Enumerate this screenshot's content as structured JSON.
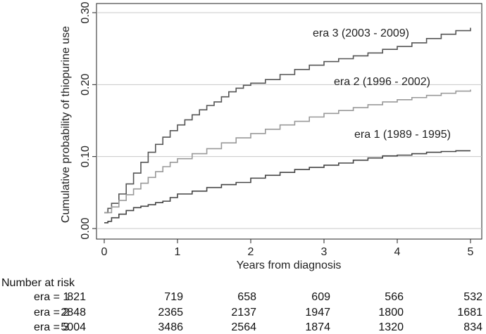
{
  "chart_data": {
    "type": "line",
    "xlabel": "Years from diagnosis",
    "ylabel": "Cumulative probability of thiopurine use",
    "xlim": [
      0,
      5
    ],
    "ylim": [
      0,
      0.3
    ],
    "x_ticks": [
      "0",
      "1",
      "2",
      "3",
      "4",
      "5"
    ],
    "y_ticks": [
      "0.00",
      "0.10",
      "0.20",
      "0.30"
    ],
    "grid": true,
    "series": [
      {
        "name": "era 3 (2003 - 2009)",
        "color": "#555555",
        "x": [
          0,
          0.05,
          0.1,
          0.2,
          0.3,
          0.4,
          0.5,
          0.6,
          0.7,
          0.8,
          0.9,
          1.0,
          1.1,
          1.2,
          1.3,
          1.4,
          1.5,
          1.6,
          1.7,
          1.8,
          1.9,
          2.0,
          2.2,
          2.4,
          2.6,
          2.8,
          3.0,
          3.2,
          3.4,
          3.6,
          3.8,
          4.0,
          4.2,
          4.4,
          4.6,
          4.8,
          5.0
        ],
        "values": [
          0.022,
          0.028,
          0.035,
          0.048,
          0.062,
          0.077,
          0.092,
          0.106,
          0.117,
          0.127,
          0.136,
          0.144,
          0.151,
          0.158,
          0.165,
          0.171,
          0.176,
          0.183,
          0.19,
          0.195,
          0.199,
          0.202,
          0.207,
          0.214,
          0.221,
          0.227,
          0.232,
          0.236,
          0.24,
          0.244,
          0.249,
          0.253,
          0.258,
          0.264,
          0.27,
          0.275,
          0.279
        ]
      },
      {
        "name": "era 2 (1996 - 2002)",
        "color": "#999999",
        "x": [
          0,
          0.1,
          0.2,
          0.3,
          0.4,
          0.5,
          0.6,
          0.7,
          0.8,
          0.9,
          1.0,
          1.2,
          1.4,
          1.6,
          1.8,
          2.0,
          2.2,
          2.4,
          2.6,
          2.8,
          3.0,
          3.2,
          3.4,
          3.6,
          3.8,
          4.0,
          4.2,
          4.4,
          4.6,
          4.8,
          5.0
        ],
        "values": [
          0.022,
          0.03,
          0.039,
          0.047,
          0.055,
          0.063,
          0.071,
          0.079,
          0.086,
          0.092,
          0.097,
          0.104,
          0.111,
          0.119,
          0.126,
          0.132,
          0.138,
          0.144,
          0.149,
          0.155,
          0.16,
          0.164,
          0.168,
          0.172,
          0.176,
          0.179,
          0.182,
          0.185,
          0.188,
          0.191,
          0.193
        ]
      },
      {
        "name": "era 1 (1989 - 1995)",
        "color": "#444444",
        "x": [
          0,
          0.05,
          0.1,
          0.2,
          0.3,
          0.4,
          0.5,
          0.6,
          0.7,
          0.8,
          0.9,
          1.0,
          1.2,
          1.4,
          1.6,
          1.8,
          2.0,
          2.2,
          2.4,
          2.6,
          2.8,
          3.0,
          3.2,
          3.4,
          3.6,
          3.8,
          4.0,
          4.2,
          4.4,
          4.6,
          4.8,
          5.0
        ],
        "values": [
          0.008,
          0.01,
          0.015,
          0.02,
          0.025,
          0.029,
          0.031,
          0.033,
          0.036,
          0.038,
          0.043,
          0.048,
          0.052,
          0.057,
          0.061,
          0.064,
          0.07,
          0.074,
          0.078,
          0.082,
          0.085,
          0.088,
          0.091,
          0.095,
          0.098,
          0.101,
          0.102,
          0.104,
          0.106,
          0.107,
          0.108,
          0.108
        ]
      }
    ]
  },
  "risk_table": {
    "title": "Number at risk",
    "rows": [
      {
        "label": "era = 1",
        "values": [
          "821",
          "719",
          "658",
          "609",
          "566",
          "532"
        ]
      },
      {
        "label": "era = 2",
        "values": [
          "2848",
          "2365",
          "2137",
          "1947",
          "1800",
          "1681"
        ]
      },
      {
        "label": "era = 3",
        "values": [
          "5004",
          "3486",
          "2564",
          "1874",
          "1320",
          "834"
        ]
      }
    ]
  }
}
